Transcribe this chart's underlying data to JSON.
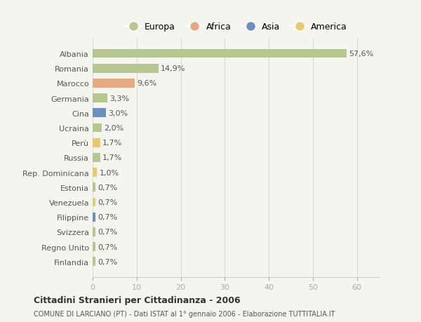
{
  "categories": [
    "Albania",
    "Romania",
    "Marocco",
    "Germania",
    "Cina",
    "Ucraina",
    "Perù",
    "Russia",
    "Rep. Dominicana",
    "Estonia",
    "Venezuela",
    "Filippine",
    "Svizzera",
    "Regno Unito",
    "Finlandia"
  ],
  "values": [
    57.6,
    14.9,
    9.6,
    3.3,
    3.0,
    2.0,
    1.7,
    1.7,
    1.0,
    0.7,
    0.7,
    0.7,
    0.7,
    0.7,
    0.7
  ],
  "labels": [
    "57,6%",
    "14,9%",
    "9,6%",
    "3,3%",
    "3,0%",
    "2,0%",
    "1,7%",
    "1,7%",
    "1,0%",
    "0,7%",
    "0,7%",
    "0,7%",
    "0,7%",
    "0,7%",
    "0,7%"
  ],
  "continents": [
    "Europa",
    "Europa",
    "Africa",
    "Europa",
    "Asia",
    "Europa",
    "America",
    "Europa",
    "America",
    "Europa",
    "America",
    "Asia",
    "Europa",
    "Europa",
    "Europa"
  ],
  "continent_colors": {
    "Europa": "#b5c98e",
    "Africa": "#e8a97e",
    "Asia": "#6b8fbf",
    "America": "#e8c96e"
  },
  "legend_order": [
    "Europa",
    "Africa",
    "Asia",
    "America"
  ],
  "title": "Cittadini Stranieri per Cittadinanza - 2006",
  "subtitle": "COMUNE DI LARCIANO (PT) - Dati ISTAT al 1° gennaio 2006 - Elaborazione TUTTITALIA.IT",
  "background_color": "#f5f5f0",
  "xlim": [
    0,
    65
  ],
  "xticks": [
    0,
    10,
    20,
    30,
    40,
    50,
    60
  ]
}
